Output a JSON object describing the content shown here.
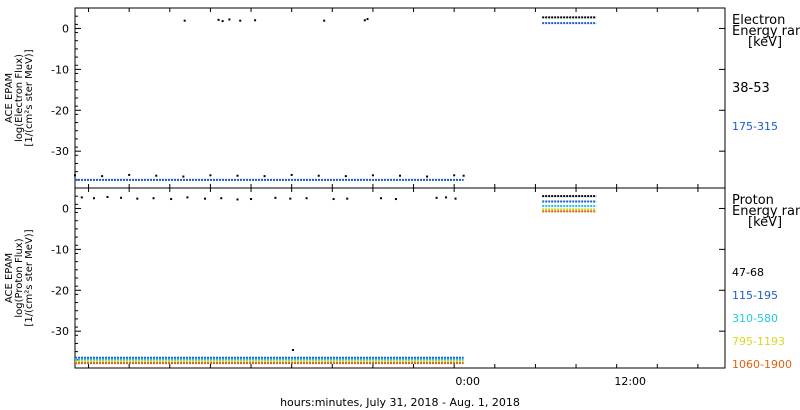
{
  "chart_data": [
    {
      "type": "scatter",
      "ylabel_lines": [
        "ACE EPAM",
        "log(Electron Flux)",
        "[1/(cm²s ster MeV)]"
      ],
      "legend_title_lines": [
        "Electron",
        "Energy ranges",
        "[keV]"
      ],
      "ylim": [
        -39,
        5
      ],
      "yticks": [
        0,
        -10,
        -20,
        -30
      ],
      "series": [
        {
          "name": "38-53",
          "color": "#000000",
          "points": [
            [
              -20.9,
              1.9
            ],
            [
              -18.4,
              2.1
            ],
            [
              -18.1,
              1.8
            ],
            [
              -17.6,
              2.2
            ],
            [
              -16.8,
              1.9
            ],
            [
              -15.7,
              2.0
            ],
            [
              -10.6,
              1.9
            ],
            [
              -7.6,
              2.0
            ],
            [
              -7.4,
              2.3
            ],
            [
              -29,
              -35.9
            ],
            [
              -27,
              -36.1
            ],
            [
              -25,
              -35.8
            ],
            [
              -23,
              -36.0
            ],
            [
              -21,
              -36.2
            ],
            [
              -19,
              -35.9
            ],
            [
              -17,
              -36.0
            ],
            [
              -15,
              -36.1
            ],
            [
              -13,
              -35.8
            ],
            [
              -11,
              -36.0
            ],
            [
              -9,
              -36.1
            ],
            [
              -7,
              -35.9
            ],
            [
              -5,
              -36.0
            ],
            [
              -3,
              -36.2
            ],
            [
              -1,
              -35.9
            ],
            [
              -0.3,
              -36.0
            ]
          ],
          "segments": [
            {
              "x_start": 5.5,
              "x_end": 9.5,
              "y": 2.7
            }
          ]
        },
        {
          "name": "175-315",
          "color": "#1c5bd6",
          "points": [],
          "segments": [
            {
              "x_start": -29,
              "x_end": -0.3,
              "y": -37.0
            },
            {
              "x_start": 5.5,
              "x_end": 9.5,
              "y": 1.3
            }
          ]
        }
      ]
    },
    {
      "type": "scatter",
      "ylabel_lines": [
        "ACE EPAM",
        "log(Proton Flux)",
        "[1/(cm²s ster MeV)]"
      ],
      "legend_title_lines": [
        "Proton",
        "Energy ranges",
        "[keV]"
      ],
      "ylim": [
        -39,
        5
      ],
      "yticks": [
        0,
        -10,
        -20,
        -30
      ],
      "x_tick_labels": [
        "0:00",
        "12:00"
      ],
      "x_ticks_hours": [
        0,
        12
      ],
      "xlim_hours": [
        -29,
        19
      ],
      "xlabel": "hours:minutes, July 31, 2018 - Aug.  1, 2018",
      "series": [
        {
          "name": "47-68",
          "color": "#000000",
          "points": [
            [
              -28.5,
              2.7
            ],
            [
              -27.6,
              2.5
            ],
            [
              -26.6,
              2.8
            ],
            [
              -25.6,
              2.6
            ],
            [
              -24.4,
              2.4
            ],
            [
              -23.2,
              2.5
            ],
            [
              -21.9,
              2.3
            ],
            [
              -20.7,
              2.7
            ],
            [
              -19.4,
              2.4
            ],
            [
              -18.2,
              2.5
            ],
            [
              -17.0,
              2.2
            ],
            [
              -16.0,
              2.3
            ],
            [
              -14.2,
              2.6
            ],
            [
              -13.1,
              2.4
            ],
            [
              -11.9,
              2.5
            ],
            [
              -9.9,
              2.3
            ],
            [
              -8.9,
              2.4
            ],
            [
              -6.4,
              2.5
            ],
            [
              -5.3,
              2.3
            ],
            [
              -2.3,
              2.6
            ],
            [
              -1.6,
              2.7
            ],
            [
              -0.9,
              2.4
            ],
            [
              -12.9,
              -34.6
            ]
          ],
          "segments": [
            {
              "x_start": 5.5,
              "x_end": 9.5,
              "y": 3.0
            }
          ]
        },
        {
          "name": "115-195",
          "color": "#1c5bd6",
          "points": [],
          "segments": [
            {
              "x_start": -29,
              "x_end": -0.3,
              "y": -36.5
            },
            {
              "x_start": 5.5,
              "x_end": 9.5,
              "y": 1.7
            }
          ]
        },
        {
          "name": "310-580",
          "color": "#22c8e0",
          "points": [],
          "segments": [
            {
              "x_start": -29,
              "x_end": -0.3,
              "y": -36.9
            },
            {
              "x_start": 5.5,
              "x_end": 9.5,
              "y": 0.6
            }
          ]
        },
        {
          "name": "795-1193",
          "color": "#d8d820",
          "points": [],
          "segments": [
            {
              "x_start": -29,
              "x_end": -0.3,
              "y": -37.4
            },
            {
              "x_start": 5.5,
              "x_end": 9.5,
              "y": -0.2
            }
          ]
        },
        {
          "name": "1060-1900",
          "color": "#e06010",
          "points": [],
          "segments": [
            {
              "x_start": -29,
              "x_end": -0.3,
              "y": -37.8
            },
            {
              "x_start": 5.5,
              "x_end": 9.5,
              "y": -0.7
            }
          ]
        }
      ]
    }
  ]
}
